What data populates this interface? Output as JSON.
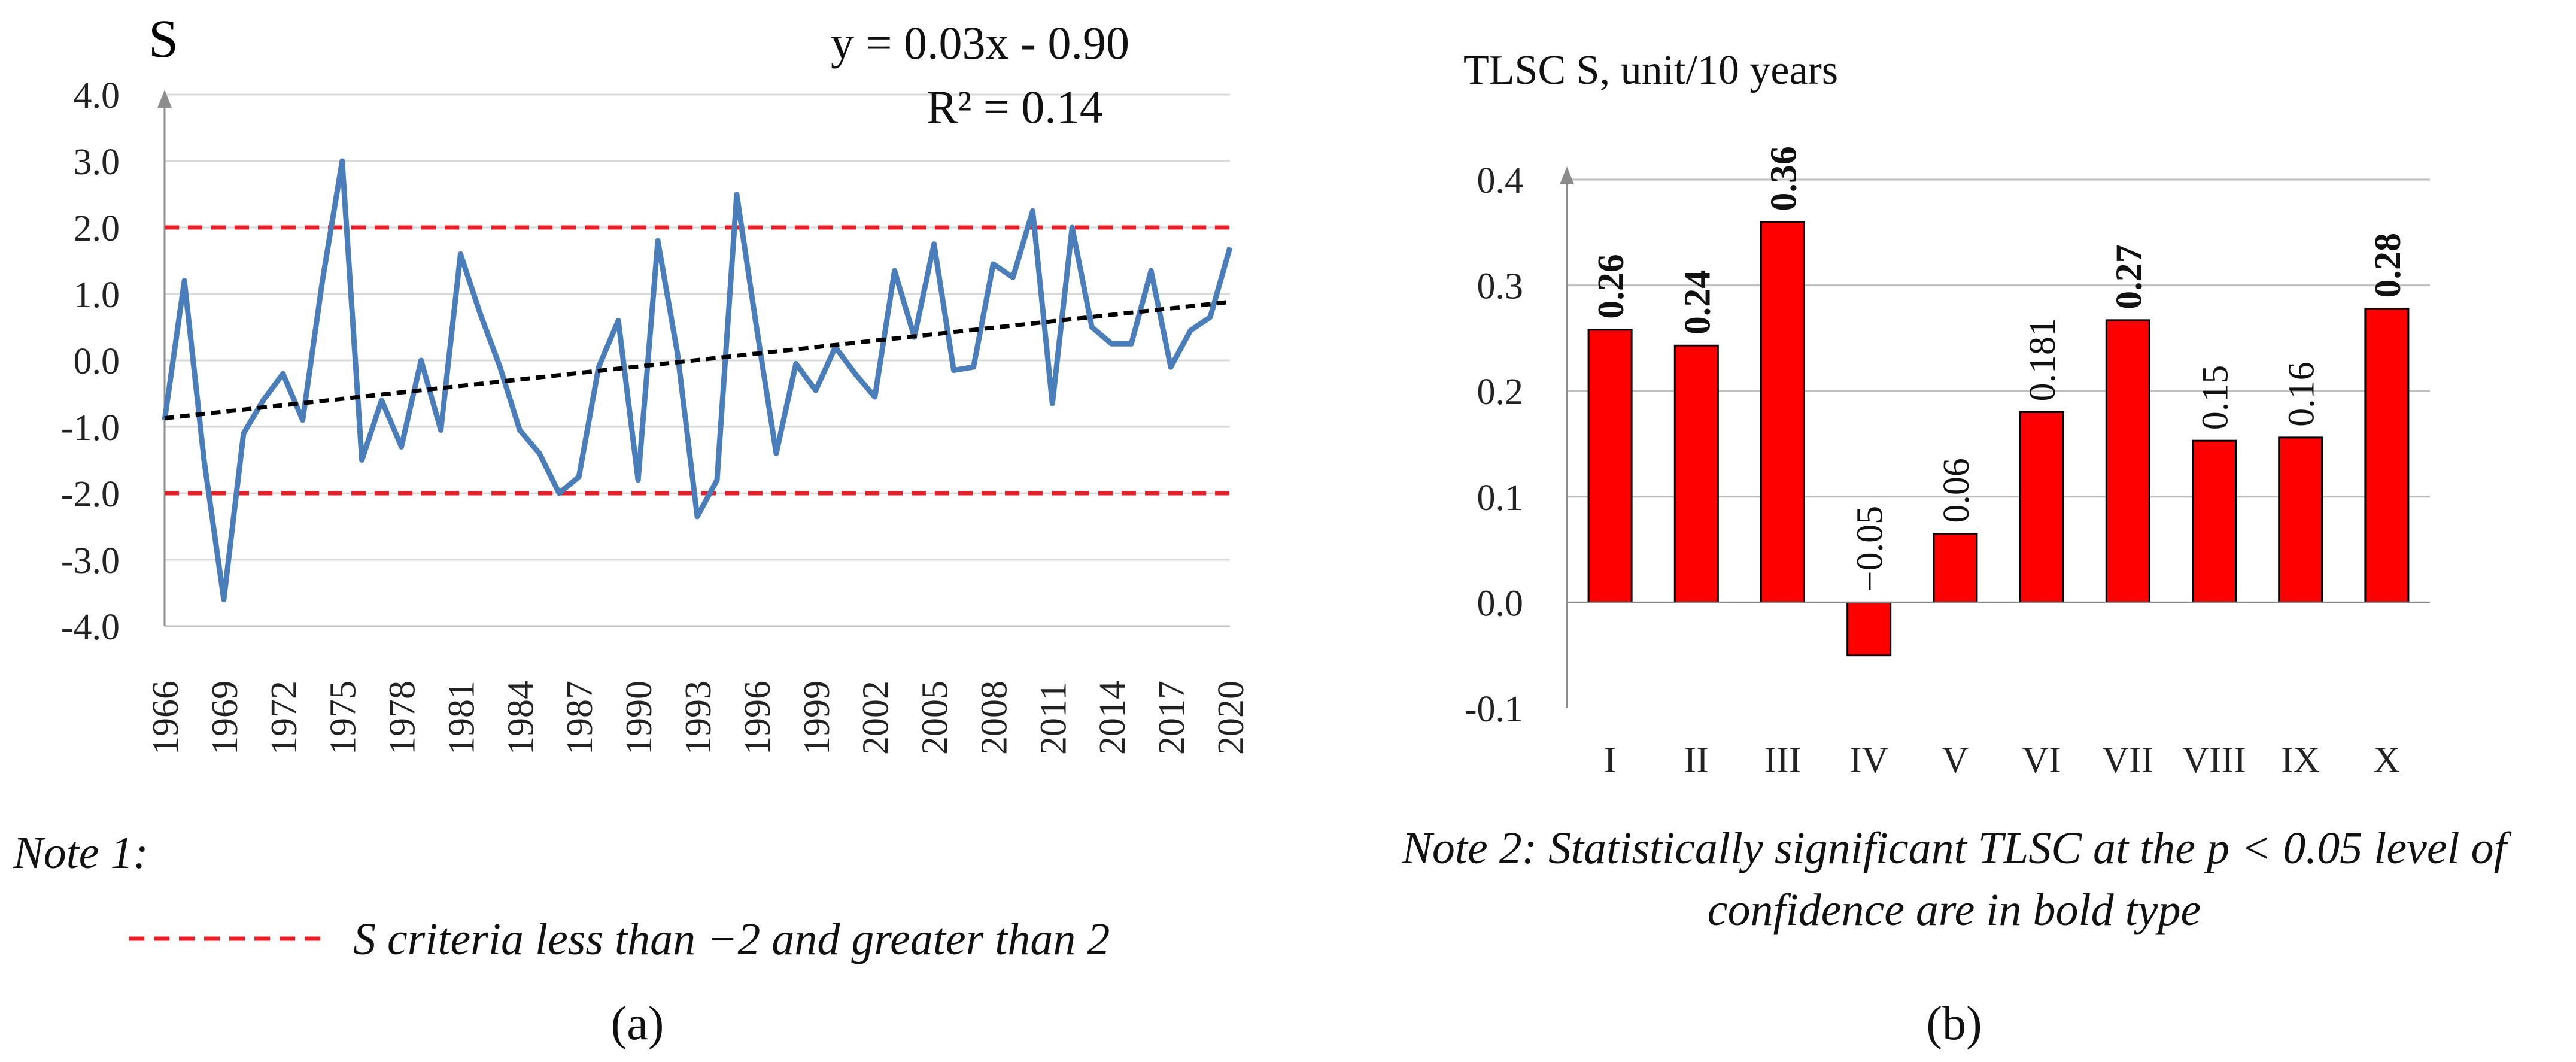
{
  "chart_data": [
    {
      "type": "line",
      "panel": "(a)",
      "ylabel": "S",
      "ylim": [
        -4.0,
        4.0
      ],
      "yticks": [
        "4.0",
        "3.0",
        "2.0",
        "1.0",
        "0.0",
        "-1.0",
        "-2.0",
        "-3.0",
        "-4.0"
      ],
      "xticks": [
        "1966",
        "1969",
        "1972",
        "1975",
        "1978",
        "1981",
        "1984",
        "1987",
        "1990",
        "1993",
        "1996",
        "1999",
        "2002",
        "2005",
        "2008",
        "2011",
        "2014",
        "2017",
        "2020"
      ],
      "xlim": [
        1966,
        2020
      ],
      "series": [
        {
          "color": "#4a7ebb",
          "x": [
            1966,
            1967,
            1968,
            1969,
            1970,
            1971,
            1972,
            1973,
            1974,
            1975,
            1976,
            1977,
            1978,
            1979,
            1980,
            1981,
            1982,
            1983,
            1984,
            1985,
            1986,
            1987,
            1988,
            1989,
            1990,
            1991,
            1992,
            1993,
            1994,
            1995,
            1996,
            1997,
            1998,
            1999,
            2000,
            2001,
            2002,
            2003,
            2004,
            2005,
            2006,
            2007,
            2008,
            2009,
            2010,
            2011,
            2012,
            2013,
            2014,
            2015,
            2016,
            2017,
            2018,
            2019,
            2020
          ],
          "y": [
            -0.9,
            1.2,
            -1.5,
            -3.6,
            -1.1,
            -0.6,
            -0.2,
            -0.9,
            1.2,
            3.0,
            -1.5,
            -0.6,
            -1.3,
            0.0,
            -1.05,
            1.6,
            0.7,
            -0.1,
            -1.05,
            -1.4,
            -2.0,
            -1.75,
            -0.1,
            0.6,
            -1.8,
            1.8,
            0.1,
            -2.35,
            -1.8,
            2.5,
            0.5,
            -1.4,
            -0.05,
            -0.45,
            0.2,
            -0.2,
            -0.55,
            1.35,
            0.35,
            1.75,
            -0.15,
            -0.1,
            1.45,
            1.25,
            2.25,
            -0.65,
            2.0,
            0.5,
            0.25,
            0.25,
            1.35,
            -0.1,
            0.45,
            0.65,
            1.7
          ]
        }
      ],
      "trendline": {
        "color": "#000000",
        "x": [
          1966,
          2020
        ],
        "y": [
          -0.87,
          0.88
        ],
        "equation": "y = 0.03x - 0.90",
        "r2": "R² = 0.14"
      },
      "threshold_lines": {
        "color": "#ee1c25",
        "values": [
          2.0,
          -2.0
        ]
      },
      "note_title": "Note 1:",
      "legend_label": "S criteria less than −2 and greater than 2"
    },
    {
      "type": "bar",
      "panel": "(b)",
      "ylabel": "TLSC S, unit/10 years",
      "ylim": [
        -0.1,
        0.4
      ],
      "yticks": [
        "0.4",
        "0.3",
        "0.2",
        "0.1",
        "0.0",
        "-0.1"
      ],
      "categories": [
        "I",
        "II",
        "III",
        "IV",
        "V",
        "VI",
        "VII",
        "VIII",
        "IX",
        "X"
      ],
      "values": [
        0.258,
        0.243,
        0.36,
        -0.05,
        0.065,
        0.18,
        0.267,
        0.153,
        0.156,
        0.278
      ],
      "labels": [
        "0.26",
        "0.24",
        "0.36",
        "−0.05",
        "0.06",
        "0.181",
        "0.27",
        "0.15",
        "0.16",
        "0.28"
      ],
      "bold": [
        true,
        true,
        true,
        false,
        false,
        false,
        true,
        false,
        false,
        true
      ],
      "color": "#ff0000",
      "note": "Note 2: Statistically significant TLSC at the p < 0.05 level of confidence are in bold type"
    }
  ],
  "panels": {
    "a_label": "(a)",
    "b_label": "(b)",
    "b_note_line1": "Note 2: Statistically significant TLSC at the p < 0.05 level of",
    "b_note_line2": "confidence are in bold type"
  }
}
